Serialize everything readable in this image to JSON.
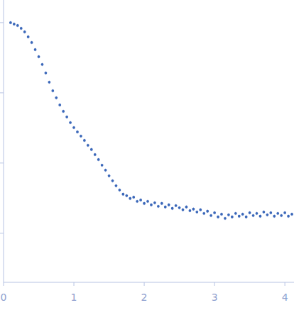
{
  "chart_data": {
    "type": "scatter",
    "x": [
      0.1,
      0.15,
      0.2,
      0.25,
      0.3,
      0.35,
      0.4,
      0.45,
      0.5,
      0.55,
      0.6,
      0.65,
      0.7,
      0.75,
      0.8,
      0.85,
      0.9,
      0.95,
      1.0,
      1.05,
      1.1,
      1.15,
      1.2,
      1.25,
      1.3,
      1.35,
      1.4,
      1.45,
      1.5,
      1.55,
      1.6,
      1.65,
      1.7,
      1.75,
      1.8,
      1.85,
      1.9,
      1.95,
      2.0,
      2.05,
      2.1,
      2.15,
      2.2,
      2.25,
      2.3,
      2.35,
      2.4,
      2.45,
      2.5,
      2.55,
      2.6,
      2.65,
      2.7,
      2.75,
      2.8,
      2.85,
      2.9,
      2.95,
      3.0,
      3.05,
      3.1,
      3.15,
      3.2,
      3.25,
      3.3,
      3.35,
      3.4,
      3.45,
      3.5,
      3.55,
      3.6,
      3.65,
      3.7,
      3.75,
      3.8,
      3.85,
      3.9,
      3.95,
      4.0,
      4.05,
      4.1
    ],
    "values": [
      1,
      0.954,
      0.911,
      0.83,
      0.739,
      0.628,
      0.521,
      0.413,
      0.327,
      0.254,
      0.192,
      0.142,
      0.107,
      0.085,
      0.0673,
      0.0546,
      0.0454,
      0.0377,
      0.032,
      0.0278,
      0.0242,
      0.021,
      0.0179,
      0.0156,
      0.0132,
      0.0112,
      0.00933,
      0.00793,
      0.00658,
      0.00559,
      0.00475,
      0.00413,
      0.0036,
      0.00343,
      0.00313,
      0.00327,
      0.00285,
      0.00298,
      0.00266,
      0.00285,
      0.00254,
      0.00272,
      0.00242,
      0.00266,
      0.00237,
      0.00254,
      0.00226,
      0.00248,
      0.00231,
      0.00216,
      0.00237,
      0.0021,
      0.00221,
      0.00201,
      0.00216,
      0.00192,
      0.00206,
      0.00179,
      0.00196,
      0.00171,
      0.00187,
      0.00163,
      0.00183,
      0.00171,
      0.00192,
      0.00175,
      0.00187,
      0.00171,
      0.00196,
      0.00179,
      0.00192,
      0.00175,
      0.00201,
      0.00183,
      0.00196,
      0.00175,
      0.00192,
      0.00179,
      0.00196,
      0.00175,
      0.00187
    ],
    "color": "#3a67b9",
    "marker": "circle",
    "log": "y",
    "tick_labels": "x",
    "xlim": [
      0,
      4.13
    ],
    "xticks": [
      0,
      1,
      2,
      3,
      4
    ],
    "ylim": [
      0.0002,
      2.1
    ],
    "yticks": [
      1,
      0.1,
      0.01,
      0.001
    ]
  }
}
